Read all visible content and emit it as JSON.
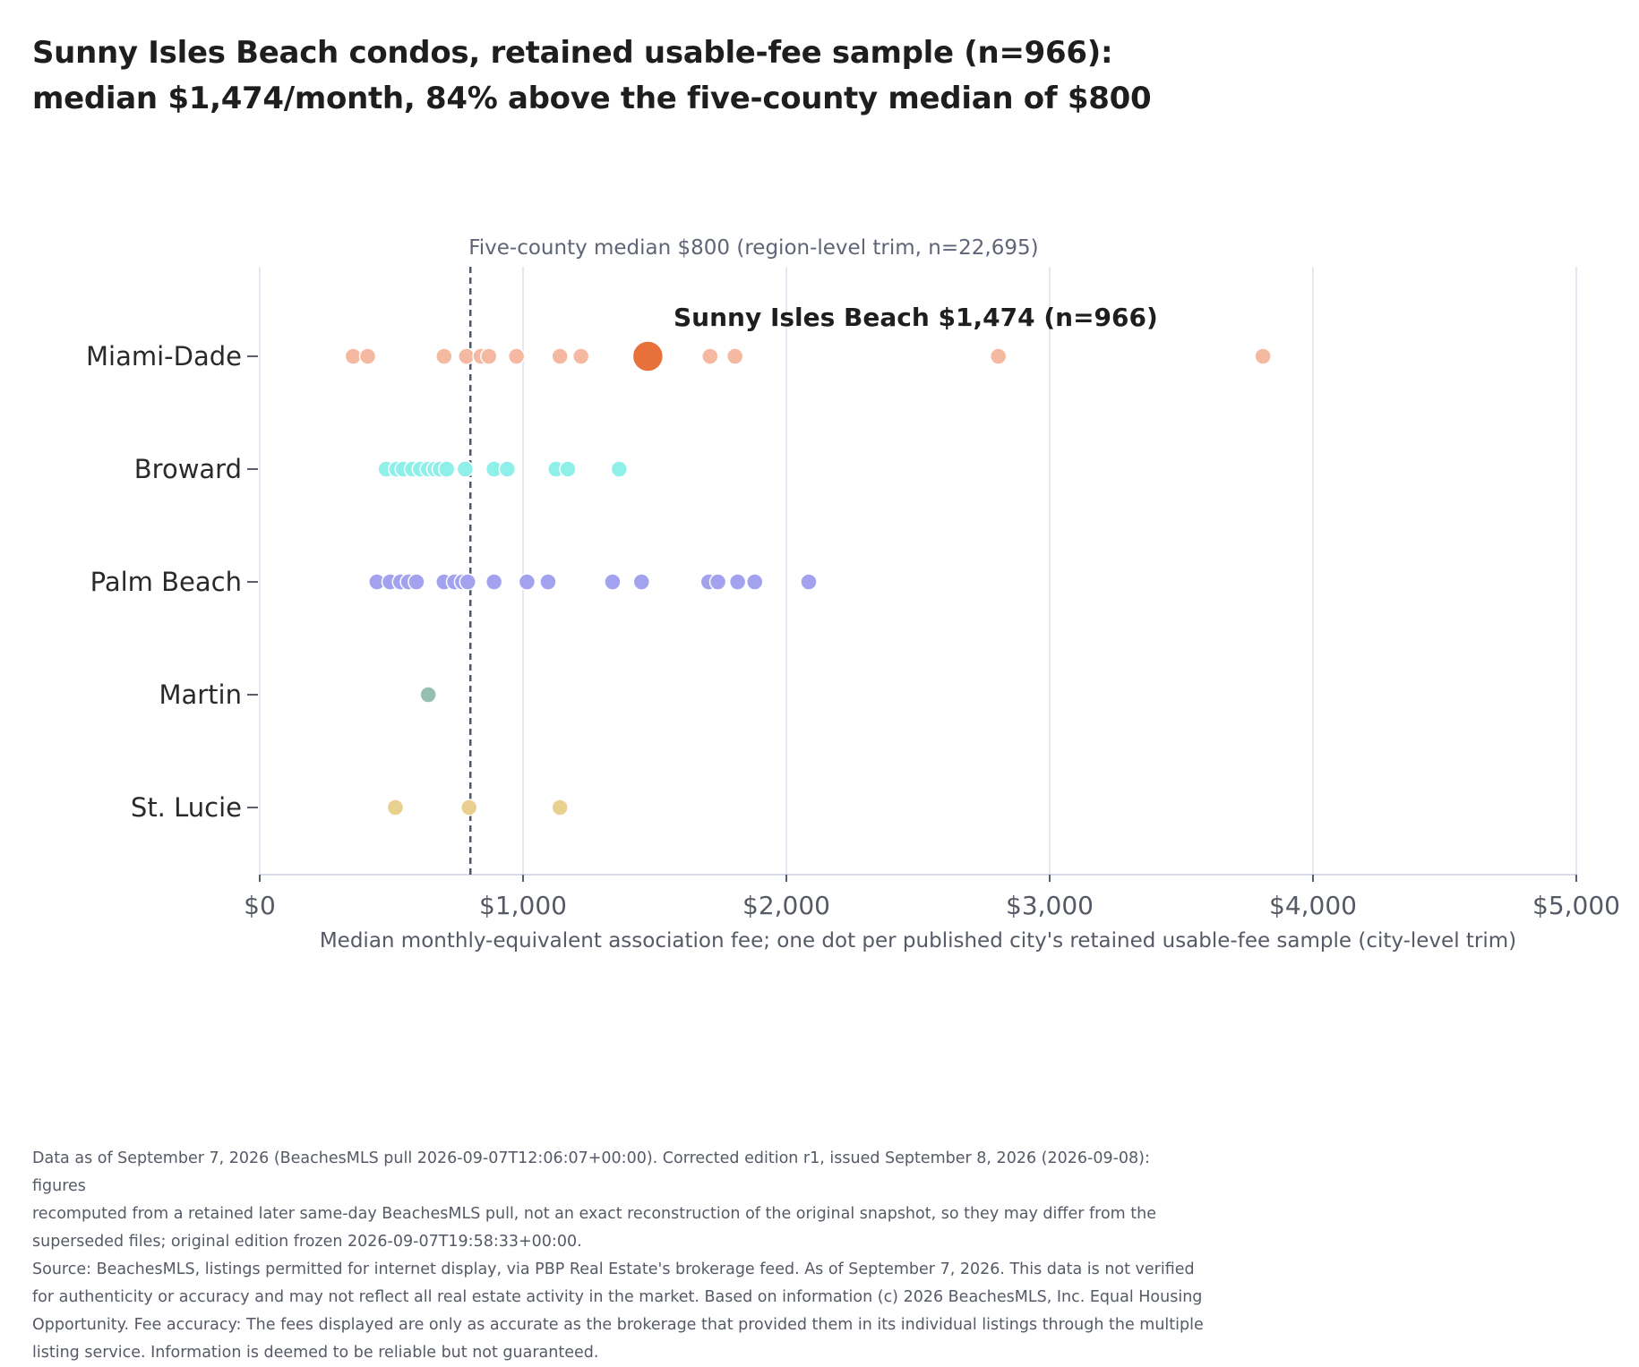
{
  "title": {
    "line1": "Sunny Isles Beach condos, retained usable-fee sample (n=966):",
    "line2": "median $1,474/month, 84% above the five-county median of $800"
  },
  "colors": {
    "Miami-Dade": "#f4b9a0",
    "highlight": "#e8703a",
    "Broward": "#8ff0ea",
    "Palm Beach": "#a3a2ef",
    "Martin": "#97bfb0",
    "St. Lucie": "#ead08f",
    "reference_line": "#4d5566",
    "grid": "#e6e7f2"
  },
  "chart_data": {
    "type": "scatter",
    "xlabel": "Median monthly-equivalent association fee; one dot per published city's retained usable-fee sample (city-level trim)",
    "xlim": [
      0,
      5000
    ],
    "x_ticks": [
      0,
      1000,
      2000,
      3000,
      4000,
      5000
    ],
    "x_tick_labels": [
      "$0",
      "$1,000",
      "$2,000",
      "$3,000",
      "$4,000",
      "$5,000"
    ],
    "categories": [
      "Miami-Dade",
      "Broward",
      "Palm Beach",
      "Martin",
      "St. Lucie"
    ],
    "grid": "vertical",
    "series": [
      {
        "name": "Miami-Dade",
        "values": [
          355,
          410,
          700,
          785,
          840,
          870,
          975,
          1140,
          1220,
          1710,
          1805,
          2805,
          3810
        ]
      },
      {
        "name": "Broward",
        "values": [
          480,
          520,
          545,
          580,
          610,
          640,
          665,
          685,
          710,
          780,
          890,
          940,
          1125,
          1170,
          1365
        ]
      },
      {
        "name": "Palm Beach",
        "values": [
          445,
          495,
          535,
          565,
          595,
          700,
          740,
          770,
          790,
          890,
          1015,
          1095,
          1340,
          1450,
          1705,
          1740,
          1815,
          1880,
          2085
        ]
      },
      {
        "name": "Martin",
        "values": [
          640
        ]
      },
      {
        "name": "St. Lucie",
        "values": [
          515,
          795,
          1140
        ]
      }
    ],
    "highlight": {
      "category": "Miami-Dade",
      "value": 1474,
      "label": "Sunny Isles Beach $1,474 (n=966)"
    },
    "reference_line": {
      "value": 800,
      "label": "Five-county median $800 (region-level trim, n=22,695)"
    }
  },
  "footer": {
    "line1": "Data as of September 7, 2026 (BeachesMLS pull 2026-09-07T12:06:07+00:00). Corrected edition r1, issued September 8, 2026 (2026-09-08): figures",
    "line2": "recomputed from a retained later same-day BeachesMLS pull, not an exact reconstruction of the original snapshot, so they may differ from the",
    "line3": "superseded files; original edition frozen 2026-09-07T19:58:33+00:00.",
    "line4": "Source: BeachesMLS, listings permitted for internet display, via PBP Real Estate's brokerage feed. As of September 7, 2026. This data is not verified",
    "line5": "for authenticity or accuracy and may not reflect all real estate activity in the market. Based on information (c) 2026 BeachesMLS, Inc. Equal Housing",
    "line6": "Opportunity. Fee accuracy: The fees displayed are only as accurate as the brokerage that provided them in its individual listings through the multiple",
    "line7": "listing service. Information is deemed to be reliable but not guaranteed."
  }
}
